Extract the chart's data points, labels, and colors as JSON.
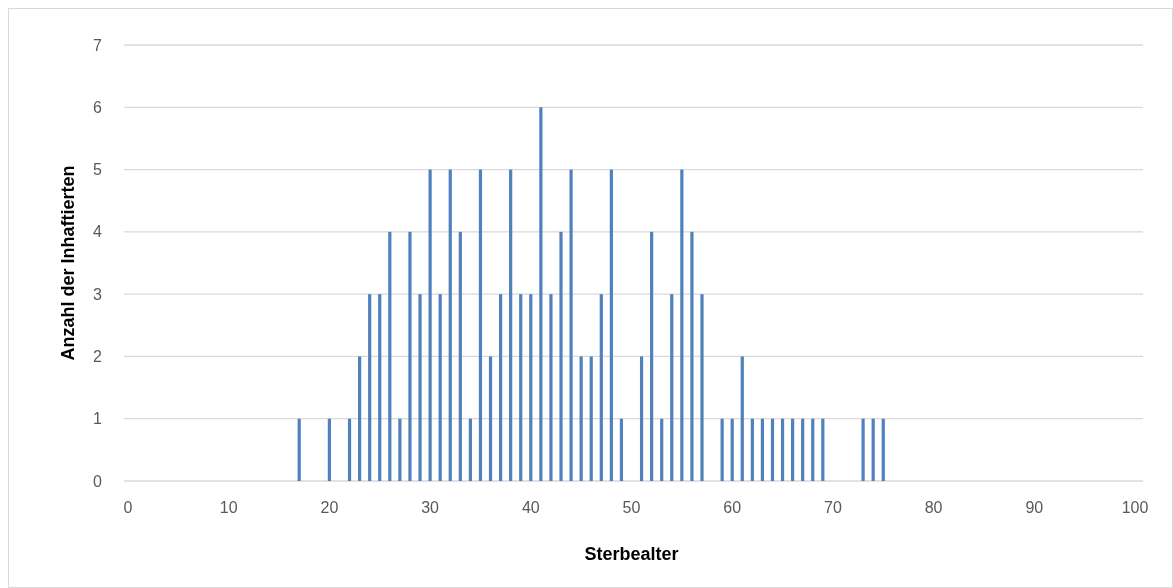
{
  "chart_data": {
    "type": "bar",
    "xlabel": "Sterbealter",
    "ylabel": "Anzahl der Inhaftierten",
    "x": [
      17,
      20,
      22,
      23,
      24,
      25,
      26,
      27,
      28,
      29,
      30,
      31,
      32,
      33,
      34,
      35,
      36,
      37,
      38,
      39,
      40,
      41,
      42,
      43,
      44,
      45,
      46,
      47,
      48,
      49,
      51,
      52,
      53,
      54,
      55,
      56,
      57,
      59,
      60,
      61,
      62,
      63,
      64,
      65,
      66,
      67,
      68,
      69,
      73,
      74,
      75
    ],
    "values": [
      1,
      1,
      1,
      2,
      3,
      3,
      4,
      1,
      4,
      3,
      5,
      3,
      5,
      4,
      1,
      5,
      2,
      3,
      5,
      3,
      3,
      6,
      3,
      4,
      5,
      2,
      2,
      3,
      5,
      1,
      2,
      4,
      1,
      3,
      5,
      4,
      3,
      1,
      1,
      2,
      1,
      1,
      1,
      1,
      1,
      1,
      1,
      1,
      1,
      1,
      1
    ],
    "color": "#4f81bd",
    "xlim": [
      0,
      100
    ],
    "xticks": [
      0,
      10,
      20,
      30,
      40,
      50,
      60,
      70,
      80,
      90,
      100
    ],
    "ylim": [
      0,
      7
    ],
    "yticks": [
      0,
      1,
      2,
      3,
      4,
      5,
      6,
      7
    ],
    "grid": "y"
  }
}
